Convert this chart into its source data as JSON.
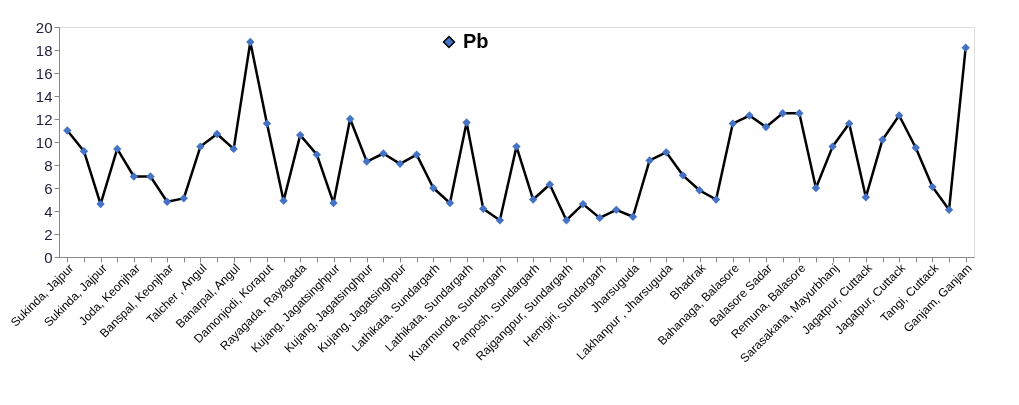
{
  "chart_data": {
    "type": "line",
    "categories": [
      "Sukinda,  Jajpur",
      null,
      "Sukinda, Jajpur",
      null,
      "Joda, Keonjhar",
      null,
      "Banspal, Keonjhar",
      null,
      "Talcher , Angul",
      null,
      "Banarpal, Angul",
      null,
      "Damonjodi, Koraput",
      null,
      "Rayagada, Rayagada",
      null,
      "Kujang, Jagatsinghpur",
      null,
      "Kujang, Jagatsinghpur",
      null,
      "Kujang, Jagatsinghpur",
      null,
      "Lathikata, Sundargarh",
      null,
      "Lathikata, Sundargarh",
      null,
      "Kuarmunda, Sundargarh",
      null,
      "Panposh, Sundargarh",
      null,
      "Rajgangpur, Sundargarh",
      null,
      "Hemgiri, Sundargarh",
      null,
      "Jharsuguda",
      null,
      "Lakhanpur , Jharsuguda",
      null,
      "Bhadrak",
      null,
      "Bahanaga, Balasore",
      null,
      "Balasore Sadar",
      null,
      "Remuna, Balasore",
      null,
      "Sarasakana, Mayurbhanj",
      null,
      "Jagatpur, Cuttack",
      null,
      "Jagatpur, Cuttack",
      null,
      "Tangi, Cuttack",
      null,
      "Ganjam, Ganjam"
    ],
    "series": [
      {
        "name": "Pb",
        "color": "#4472c4",
        "values": [
          11.0,
          9.2,
          4.6,
          9.4,
          7.0,
          7.0,
          4.8,
          5.1,
          9.6,
          10.7,
          9.4,
          18.7,
          11.6,
          4.9,
          10.6,
          8.9,
          4.7,
          12.0,
          8.3,
          9.0,
          8.1,
          8.9,
          6.0,
          4.7,
          11.7,
          4.2,
          3.2,
          9.6,
          5.0,
          6.3,
          3.2,
          4.6,
          3.4,
          4.1,
          3.5,
          8.4,
          9.1,
          7.1,
          5.8,
          5.0,
          11.6,
          12.3,
          11.3,
          12.5,
          12.5,
          6.0,
          9.6,
          11.6,
          5.2,
          10.2,
          12.3,
          9.5,
          6.1,
          4.1,
          18.2
        ]
      }
    ],
    "ylim": [
      0,
      20
    ],
    "yticks": [
      0,
      2,
      4,
      6,
      8,
      10,
      12,
      14,
      16,
      18,
      20
    ],
    "grid": false,
    "legend": "top",
    "marker": "diamond",
    "line_style": "solid"
  }
}
